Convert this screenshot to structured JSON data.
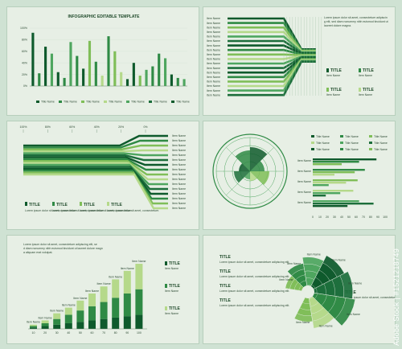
{
  "palette": [
    "#0e5a2c",
    "#2f8a45",
    "#7fbe58",
    "#b5d98a",
    "#4ea65f",
    "#1c6e3b"
  ],
  "watermark": "Adobe Stock | #1521218749",
  "chart_data": [
    {
      "type": "bar",
      "title": "INFOGRAPHIC EDITABLE TEMPLATE",
      "ytick_labels": [
        "0%",
        "20%",
        "40%",
        "60%",
        "80%",
        "100%"
      ],
      "ylim": [
        0,
        100
      ],
      "legend": [
        "Title Name",
        "Title Name",
        "Title Name",
        "Title Name",
        "Title Name",
        "Title Name",
        "Title Name"
      ],
      "bars": [
        {
          "value": 92,
          "color": "#0e5a2c"
        },
        {
          "value": 22,
          "color": "#2f8a45"
        },
        {
          "value": 68,
          "color": "#0e5a2c"
        },
        {
          "value": 56,
          "color": "#4ea65f"
        },
        {
          "value": 24,
          "color": "#0e5a2c"
        },
        {
          "value": 14,
          "color": "#2f8a45"
        },
        {
          "value": 76,
          "color": "#4ea65f"
        },
        {
          "value": 52,
          "color": "#2f8a45"
        },
        {
          "value": 30,
          "color": "#0e5a2c"
        },
        {
          "value": 78,
          "color": "#7fbe58"
        },
        {
          "value": 42,
          "color": "#2f8a45"
        },
        {
          "value": 18,
          "color": "#b5d98a"
        },
        {
          "value": 86,
          "color": "#2f8a45"
        },
        {
          "value": 60,
          "color": "#7fbe58"
        },
        {
          "value": 24,
          "color": "#b5d98a"
        },
        {
          "value": 12,
          "color": "#0e5a2c"
        },
        {
          "value": 40,
          "color": "#0e5a2c"
        },
        {
          "value": 18,
          "color": "#7fbe58"
        },
        {
          "value": 28,
          "color": "#4ea65f"
        },
        {
          "value": 34,
          "color": "#2f8a45"
        },
        {
          "value": 56,
          "color": "#2f8a45"
        },
        {
          "value": 48,
          "color": "#4ea65f"
        },
        {
          "value": 20,
          "color": "#0e5a2c"
        },
        {
          "value": 14,
          "color": "#2f8a45"
        },
        {
          "value": 12,
          "color": "#4ea65f"
        }
      ]
    },
    {
      "type": "line",
      "series_count": 18,
      "label": "Item Name",
      "titles": [
        "TITLE",
        "TITLE",
        "TITLE",
        "TITLE"
      ],
      "paragraph": "Lorem ipsum dolor sit amet, consectetuer adipiscing elit, sed diam nonummy nibh euismod tincidunt ut laoreet dolore magna."
    },
    {
      "type": "line",
      "xtick_labels": [
        "100%",
        "80%",
        "60%",
        "40%",
        "20%",
        "0%"
      ],
      "series_count": 16,
      "label": "Item Name",
      "titles": [
        "TITLE",
        "TITLE",
        "TITLE",
        "TITLE"
      ],
      "paragraph": "Lorem ipsum dolor sit amet, consectetuer."
    },
    {
      "type": "bar",
      "legend": [
        "Title Name",
        "Title Name",
        "Title Name",
        "Title Name",
        "Title Name",
        "Title Name",
        "Title Name",
        "Title Name",
        "Title Name"
      ],
      "xtick_labels": [
        "0",
        "10",
        "20",
        "30",
        "40",
        "50",
        "60",
        "70",
        "80",
        "90",
        "100"
      ],
      "xlim": [
        0,
        100
      ],
      "label": "Item Name",
      "groups": [
        [
          88,
          64,
          40
        ],
        [
          72,
          58,
          30
        ],
        [
          62,
          46,
          22
        ],
        [
          56,
          38,
          18
        ],
        [
          64,
          84,
          48
        ]
      ]
    },
    {
      "type": "bar",
      "paragraph": "Lorem ipsum dolor sit amet, consectetuer adipiscing elit, sed diam nonummy nibh euismod tincidunt ut laoreet dolore magna aliquam erat volutpat.",
      "categories": [
        "10",
        "20",
        "30",
        "40",
        "50",
        "60",
        "70",
        "80",
        "90",
        "100"
      ],
      "label": "Item Name",
      "series": [
        {
          "values": [
            1,
            2,
            3,
            4,
            5,
            6,
            7,
            8,
            9,
            10
          ],
          "color": "#0e5a2c"
        },
        {
          "values": [
            1,
            2,
            4,
            6,
            8,
            10,
            12,
            14,
            16,
            18
          ],
          "color": "#2f8a45"
        },
        {
          "values": [
            1,
            2,
            4,
            5,
            7,
            9,
            11,
            13,
            16,
            18
          ],
          "color": "#b5d98a"
        }
      ],
      "ylim": [
        0,
        50
      ],
      "titles": [
        "TITLE",
        "TITLE",
        "TITLE"
      ]
    },
    {
      "type": "pie",
      "titles": [
        "TITLE",
        "TITLE",
        "TITLE",
        "TITLE",
        "TITLE"
      ],
      "paragraph": "Lorem ipsum dolor sit amet, consectetuer adipiscing elit.",
      "label": "Item Name",
      "slices": [
        {
          "radius": 46,
          "color": "#7fbe58"
        },
        {
          "radius": 58,
          "color": "#2f8a45"
        },
        {
          "radius": 70,
          "color": "#4ea65f"
        },
        {
          "radius": 82,
          "color": "#0e5a2c"
        },
        {
          "radius": 90,
          "color": "#1c6e3b"
        },
        {
          "radius": 96,
          "color": "#2f8a45"
        },
        {
          "radius": 74,
          "color": "#b5d98a"
        },
        {
          "radius": 60,
          "color": "#7fbe58"
        }
      ]
    }
  ]
}
